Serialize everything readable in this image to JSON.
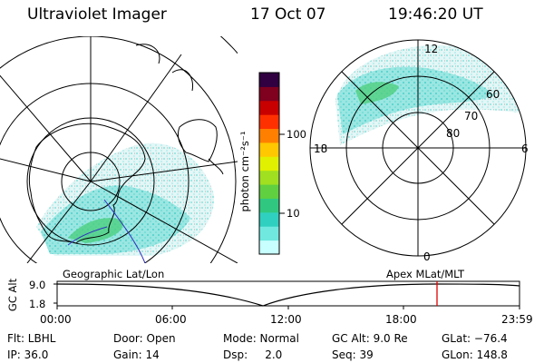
{
  "header": {
    "instrument": "Ultraviolet Imager",
    "date": "17 Oct 07",
    "time": "19:46:20 UT"
  },
  "left_map": {
    "label": "Geographic Lat/Lon"
  },
  "right_map": {
    "label": "Apex  MLat/MLT",
    "mlt_labels": {
      "top": "12",
      "left": "18",
      "right": "6",
      "bottom": "0"
    },
    "lat_labels": [
      "60",
      "70",
      "80"
    ]
  },
  "colorbar": {
    "unit_label": "photon cm⁻²s⁻¹",
    "ticks": [
      "100",
      "10"
    ],
    "colors": [
      "#c8ffff",
      "#70e8e0",
      "#30d0c0",
      "#30c880",
      "#60d040",
      "#a0e020",
      "#e0f000",
      "#ffc800",
      "#ff8000",
      "#ff3000",
      "#c80000",
      "#800020",
      "#300040"
    ]
  },
  "alt_plot": {
    "axis_label": "GC Alt",
    "y_ticks": [
      "9.0",
      "1.8"
    ],
    "x_ticks": [
      "00:00",
      "06:00",
      "12:00",
      "18:00",
      "23:59"
    ],
    "marker_color": "#e00000"
  },
  "info": {
    "flt": "Flt: LBHL",
    "ip": "IP: 36.0",
    "door": "Door: Open",
    "gain": "Gain: 14",
    "mode": "Mode: Normal",
    "dsp": "Dsp:     2.0",
    "gc_alt": "GC Alt: 9.0 Re",
    "seq": "Seq: 39",
    "glat": "GLat: −76.4",
    "glon": "GLon: 148.8"
  }
}
